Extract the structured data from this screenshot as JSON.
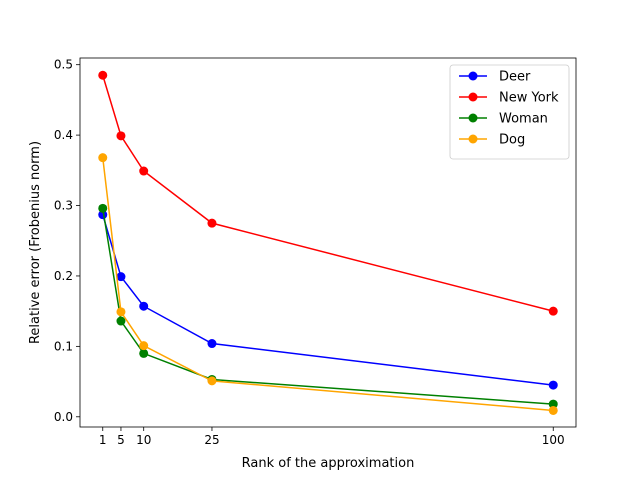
{
  "chart_data": {
    "type": "line",
    "title": "",
    "xlabel": "Rank of the approximation",
    "ylabel": "Relative error (Frobenius norm)",
    "x": [
      1,
      5,
      10,
      25,
      100
    ],
    "xticks": [
      1,
      5,
      10,
      25,
      100
    ],
    "yticks": [
      0.0,
      0.1,
      0.2,
      0.3,
      0.4,
      0.5
    ],
    "xlim": [
      -4,
      105
    ],
    "ylim": [
      -0.0145,
      0.5095
    ],
    "grid": false,
    "legend_position": "top-right",
    "series": [
      {
        "name": "Deer",
        "color": "#0000ff",
        "values": [
          0.287,
          0.199,
          0.157,
          0.104,
          0.045
        ]
      },
      {
        "name": "New York",
        "color": "#ff0000",
        "values": [
          0.485,
          0.399,
          0.349,
          0.275,
          0.15
        ]
      },
      {
        "name": "Woman",
        "color": "#008000",
        "values": [
          0.296,
          0.136,
          0.09,
          0.053,
          0.018
        ]
      },
      {
        "name": "Dog",
        "color": "#ffa500",
        "values": [
          0.368,
          0.149,
          0.101,
          0.051,
          0.009
        ]
      }
    ]
  }
}
